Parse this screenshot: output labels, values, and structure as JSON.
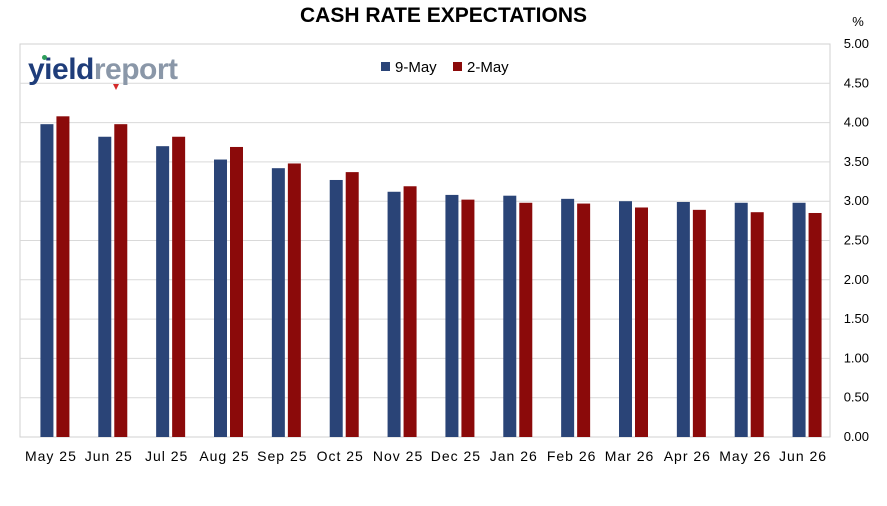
{
  "chart_data": {
    "type": "bar",
    "title": "CASH RATE EXPECTATIONS",
    "ylabel": "%",
    "xlabel": "",
    "ylim": [
      0,
      5
    ],
    "yticks": [
      "0.00",
      "0.50",
      "1.00",
      "1.50",
      "2.00",
      "2.50",
      "3.00",
      "3.50",
      "4.00",
      "4.50",
      "5.00"
    ],
    "grid": true,
    "legend_position": "top-center",
    "categories": [
      "May 25",
      "Jun 25",
      "Jul 25",
      "Aug 25",
      "Sep 25",
      "Oct 25",
      "Nov 25",
      "Dec 25",
      "Jan 26",
      "Feb 26",
      "Mar 26",
      "Apr 26",
      "May 26",
      "Jun 26"
    ],
    "series": [
      {
        "name": "9-May",
        "color": "#2a4477",
        "values": [
          3.98,
          3.82,
          3.7,
          3.53,
          3.42,
          3.27,
          3.12,
          3.08,
          3.07,
          3.03,
          3.0,
          2.99,
          2.98,
          2.98
        ]
      },
      {
        "name": "2-May",
        "color": "#8b0a0a",
        "values": [
          4.08,
          3.98,
          3.82,
          3.69,
          3.48,
          3.37,
          3.19,
          3.02,
          2.98,
          2.97,
          2.92,
          2.89,
          2.86,
          2.85
        ]
      }
    ]
  },
  "logo": {
    "part1": "yield",
    "part2": "report"
  }
}
